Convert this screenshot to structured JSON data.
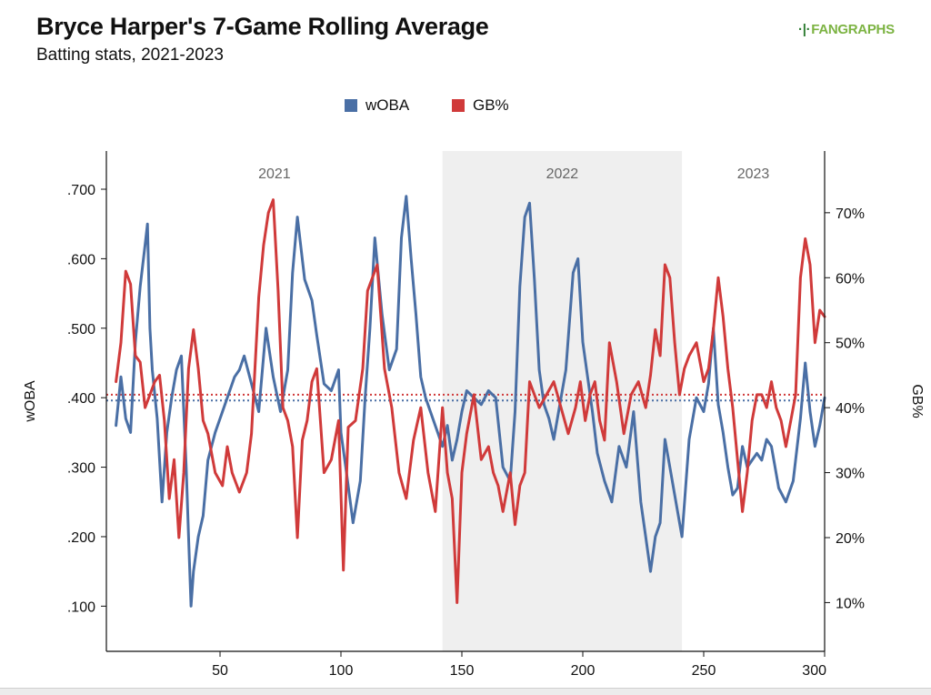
{
  "header": {
    "title": "Bryce Harper's 7-Game Rolling Average",
    "subtitle": "Batting stats, 2021-2023",
    "logo_text": "FANGRAPHS",
    "logo_mark": "·|·"
  },
  "colors": {
    "woba": "#4a6fa5",
    "gb": "#d03a3a",
    "band": "#efefef",
    "axis": "#111111"
  },
  "chart_data": {
    "type": "line",
    "title": "Bryce Harper's 7-Game Rolling Average",
    "subtitle": "Batting stats, 2021-2023",
    "xlabel": "",
    "ylabel_left": "wOBA",
    "ylabel_right": "GB%",
    "xlim": [
      3,
      300
    ],
    "ylim_left": [
      0.035,
      0.755
    ],
    "ylim_right": [
      0.025,
      0.795
    ],
    "x_ticks": [
      50,
      100,
      150,
      200,
      250,
      300
    ],
    "y_left_ticks": [
      0.1,
      0.2,
      0.3,
      0.4,
      0.5,
      0.6,
      0.7
    ],
    "y_left_tick_labels": [
      ".100",
      ".200",
      ".300",
      ".400",
      ".500",
      ".600",
      ".700"
    ],
    "y_right_ticks": [
      0.1,
      0.2,
      0.3,
      0.4,
      0.5,
      0.6,
      0.7
    ],
    "y_right_tick_labels": [
      "10%",
      "20%",
      "30%",
      "40%",
      "50%",
      "60%",
      "70%"
    ],
    "seasons": [
      {
        "label": "2021",
        "x_start": 3,
        "x_end": 142,
        "shaded": false
      },
      {
        "label": "2022",
        "x_start": 142,
        "x_end": 241,
        "shaded": true
      },
      {
        "label": "2023",
        "x_start": 241,
        "x_end": 300,
        "shaded": false
      }
    ],
    "reference_lines": [
      {
        "series": "wOBA",
        "axis": "left",
        "value": 0.396
      },
      {
        "series": "GB%",
        "axis": "right",
        "value": 0.42
      }
    ],
    "legend": {
      "position": "top-center",
      "entries": [
        "wOBA",
        "GB%"
      ]
    },
    "series": [
      {
        "name": "wOBA",
        "axis": "left",
        "x": [
          7,
          9,
          11,
          13,
          15,
          17,
          19,
          20,
          21,
          22,
          24,
          26,
          28,
          30,
          32,
          34,
          36,
          37,
          38,
          39,
          41,
          43,
          45,
          48,
          51,
          54,
          56,
          58,
          60,
          63,
          66,
          69,
          72,
          75,
          78,
          80,
          82,
          85,
          88,
          90,
          93,
          96,
          99,
          100,
          102,
          105,
          108,
          110,
          112,
          114,
          117,
          120,
          123,
          125,
          127,
          129,
          131,
          133,
          135,
          137,
          140,
          142,
          144,
          146,
          148,
          150,
          152,
          155,
          158,
          161,
          164,
          167,
          170,
          172,
          174,
          176,
          178,
          180,
          182,
          184,
          186,
          188,
          190,
          193,
          196,
          198,
          200,
          202,
          204,
          206,
          209,
          212,
          215,
          218,
          221,
          224,
          226,
          228,
          230,
          232,
          234,
          236,
          238,
          241,
          244,
          247,
          250,
          252,
          254,
          256,
          258,
          260,
          262,
          264,
          266,
          268,
          270,
          272,
          274,
          276,
          278,
          281,
          284,
          287,
          290,
          292,
          294,
          296,
          298,
          300
        ],
        "values": [
          0.36,
          0.43,
          0.37,
          0.35,
          0.48,
          0.56,
          0.62,
          0.65,
          0.5,
          0.44,
          0.37,
          0.25,
          0.35,
          0.4,
          0.44,
          0.46,
          0.3,
          0.2,
          0.1,
          0.15,
          0.2,
          0.23,
          0.31,
          0.35,
          0.38,
          0.41,
          0.43,
          0.44,
          0.46,
          0.42,
          0.38,
          0.5,
          0.43,
          0.38,
          0.44,
          0.58,
          0.66,
          0.57,
          0.54,
          0.49,
          0.42,
          0.41,
          0.44,
          0.35,
          0.3,
          0.22,
          0.28,
          0.4,
          0.5,
          0.63,
          0.52,
          0.44,
          0.47,
          0.63,
          0.69,
          0.6,
          0.52,
          0.43,
          0.4,
          0.38,
          0.35,
          0.33,
          0.36,
          0.31,
          0.34,
          0.38,
          0.41,
          0.4,
          0.39,
          0.41,
          0.4,
          0.3,
          0.28,
          0.38,
          0.56,
          0.66,
          0.68,
          0.57,
          0.44,
          0.39,
          0.37,
          0.34,
          0.38,
          0.44,
          0.58,
          0.6,
          0.48,
          0.43,
          0.38,
          0.32,
          0.28,
          0.25,
          0.33,
          0.3,
          0.38,
          0.25,
          0.2,
          0.15,
          0.2,
          0.22,
          0.34,
          0.3,
          0.26,
          0.2,
          0.34,
          0.4,
          0.38,
          0.42,
          0.5,
          0.39,
          0.35,
          0.3,
          0.26,
          0.27,
          0.33,
          0.3,
          0.31,
          0.32,
          0.31,
          0.34,
          0.33,
          0.27,
          0.25,
          0.28,
          0.37,
          0.45,
          0.38,
          0.33,
          0.36,
          0.4
        ]
      },
      {
        "name": "GB%",
        "axis": "right",
        "x": [
          7,
          9,
          11,
          13,
          15,
          17,
          19,
          21,
          23,
          25,
          27,
          29,
          31,
          33,
          35,
          37,
          39,
          41,
          43,
          45,
          48,
          51,
          53,
          55,
          58,
          61,
          63,
          66,
          68,
          70,
          72,
          74,
          76,
          78,
          80,
          82,
          84,
          86,
          88,
          90,
          93,
          96,
          99,
          101,
          103,
          106,
          109,
          111,
          113,
          115,
          118,
          121,
          124,
          127,
          130,
          133,
          136,
          139,
          142,
          144,
          146,
          148,
          150,
          152,
          155,
          158,
          161,
          163,
          165,
          167,
          170,
          172,
          174,
          176,
          178,
          180,
          182,
          185,
          188,
          191,
          194,
          197,
          199,
          201,
          203,
          205,
          207,
          209,
          211,
          214,
          217,
          220,
          223,
          226,
          228,
          230,
          232,
          234,
          236,
          238,
          240,
          242,
          244,
          247,
          250,
          252,
          254,
          256,
          258,
          260,
          262,
          264,
          266,
          268,
          270,
          272,
          274,
          276,
          278,
          280,
          282,
          284,
          286,
          288,
          290,
          292,
          294,
          296,
          298,
          300
        ],
        "values": [
          0.44,
          0.5,
          0.61,
          0.59,
          0.48,
          0.47,
          0.4,
          0.42,
          0.44,
          0.45,
          0.38,
          0.26,
          0.32,
          0.2,
          0.3,
          0.46,
          0.52,
          0.46,
          0.38,
          0.36,
          0.3,
          0.28,
          0.34,
          0.3,
          0.27,
          0.3,
          0.36,
          0.57,
          0.65,
          0.7,
          0.72,
          0.58,
          0.4,
          0.38,
          0.34,
          0.2,
          0.35,
          0.38,
          0.44,
          0.46,
          0.3,
          0.32,
          0.38,
          0.15,
          0.37,
          0.38,
          0.46,
          0.58,
          0.6,
          0.62,
          0.46,
          0.4,
          0.3,
          0.26,
          0.35,
          0.4,
          0.3,
          0.24,
          0.4,
          0.3,
          0.26,
          0.1,
          0.3,
          0.36,
          0.42,
          0.32,
          0.34,
          0.3,
          0.28,
          0.24,
          0.3,
          0.22,
          0.28,
          0.3,
          0.44,
          0.42,
          0.4,
          0.42,
          0.44,
          0.4,
          0.36,
          0.4,
          0.44,
          0.38,
          0.42,
          0.44,
          0.38,
          0.35,
          0.5,
          0.44,
          0.36,
          0.42,
          0.44,
          0.4,
          0.45,
          0.52,
          0.48,
          0.62,
          0.6,
          0.5,
          0.42,
          0.46,
          0.48,
          0.5,
          0.44,
          0.46,
          0.52,
          0.6,
          0.54,
          0.46,
          0.4,
          0.32,
          0.24,
          0.3,
          0.38,
          0.42,
          0.42,
          0.4,
          0.44,
          0.4,
          0.38,
          0.34,
          0.38,
          0.42,
          0.6,
          0.66,
          0.62,
          0.5,
          0.55,
          0.54
        ]
      }
    ]
  }
}
